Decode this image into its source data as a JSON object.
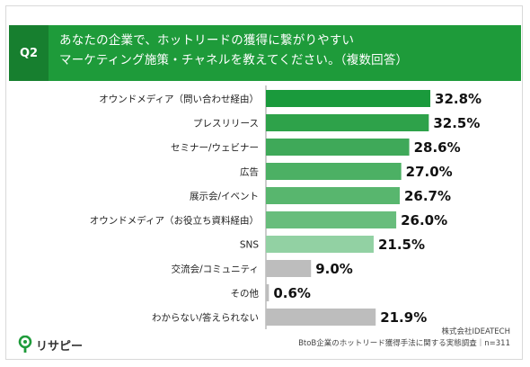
{
  "header": {
    "badge": "Q2",
    "title_line1": "あなたの企業で、ホットリードの獲得に繋がりやすい",
    "title_line2": "マーケティング施策・チャネルを教えてください。（複数回答）"
  },
  "chart_data": {
    "type": "bar",
    "orientation": "horizontal",
    "categories": [
      "オウンドメディア（問い合わせ経由）",
      "プレスリリース",
      "セミナー/ウェビナー",
      "広告",
      "展示会/イベント",
      "オウンドメディア（お役立ち資料経由）",
      "SNS",
      "交流会/コミュニティ",
      "その他",
      "わからない/答えられない"
    ],
    "values": [
      32.8,
      32.5,
      28.6,
      27.0,
      26.7,
      26.0,
      21.5,
      9.0,
      0.6,
      21.9
    ],
    "value_labels": [
      "32.8%",
      "32.5%",
      "28.6%",
      "27.0%",
      "26.7%",
      "26.0%",
      "21.5%",
      "9.0%",
      "0.6%",
      "21.9%"
    ],
    "colors": [
      "#1a9a3c",
      "#2ea24a",
      "#3fa959",
      "#4cb064",
      "#58b66e",
      "#68bd7c",
      "#92d1a3",
      "#bdbdbd",
      "#bdbdbd",
      "#bdbdbd"
    ],
    "xlim": [
      0,
      35
    ],
    "grid": false,
    "legend": "none"
  },
  "logo": {
    "text": "リサピー",
    "color": "#1e9b3a"
  },
  "footer": {
    "line1": "株式会社IDEATECH",
    "line2": "BtoB企業のホットリード獲得手法に関する実態調査｜n=311"
  }
}
